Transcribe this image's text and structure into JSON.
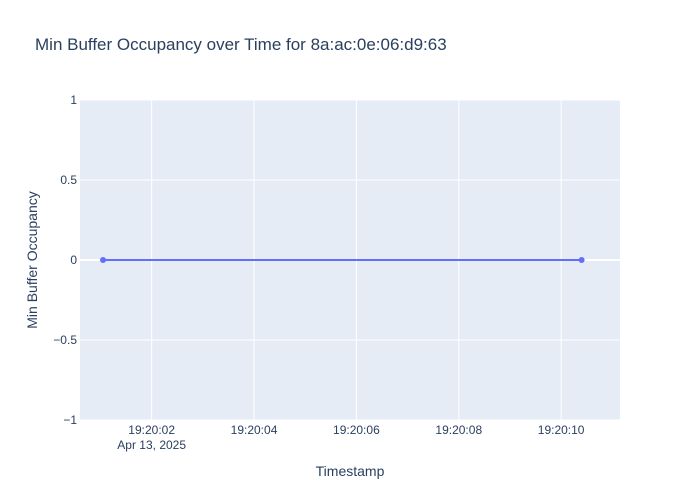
{
  "chart_data": {
    "type": "line",
    "title": "Min Buffer Occupancy over Time for 8a:ac:0e:06:d9:63",
    "xlabel": "Timestamp",
    "ylabel": "Min Buffer Occupancy",
    "x_range": [
      "2025-04-13 19:20:00.600",
      "2025-04-13 19:20:11.150"
    ],
    "ylim": [
      -1,
      1
    ],
    "grid": true,
    "x_ticks": [
      {
        "value": "2025-04-13 19:20:02",
        "label": "19:20:02",
        "sublabel": "Apr 13, 2025"
      },
      {
        "value": "2025-04-13 19:20:04",
        "label": "19:20:04",
        "sublabel": ""
      },
      {
        "value": "2025-04-13 19:20:06",
        "label": "19:20:06",
        "sublabel": ""
      },
      {
        "value": "2025-04-13 19:20:08",
        "label": "19:20:08",
        "sublabel": ""
      },
      {
        "value": "2025-04-13 19:20:10",
        "label": "19:20:10",
        "sublabel": ""
      }
    ],
    "y_ticks": [
      {
        "value": 1,
        "label": "1"
      },
      {
        "value": 0.5,
        "label": "0.5"
      },
      {
        "value": 0,
        "label": "0"
      },
      {
        "value": -0.5,
        "label": "−0.5"
      },
      {
        "value": -1,
        "label": "−1"
      }
    ],
    "series": [
      {
        "color": "#636efa",
        "points": [
          {
            "x": "2025-04-13 19:20:01.050",
            "y": 0
          },
          {
            "x": "2025-04-13 19:20:10.400",
            "y": 0
          }
        ]
      }
    ],
    "colors": {
      "plot_bg": "#e5ecf6",
      "grid": "#ffffff",
      "text": "#2a3f5f"
    }
  }
}
